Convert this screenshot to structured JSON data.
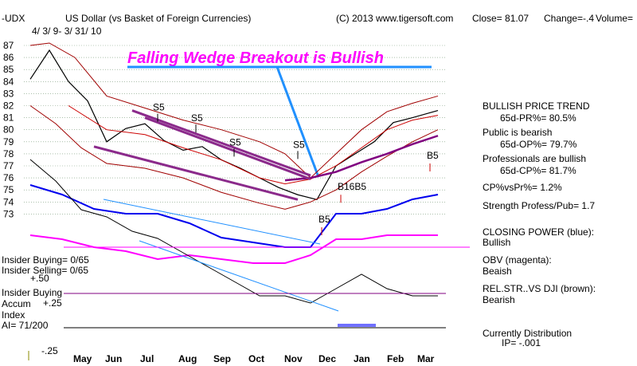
{
  "header": {
    "symbol": "-UDX",
    "title": "US Dollar (vs Basket of Foreign Currencies)",
    "dates": "4/ 3/ 9- 3/ 31/ 10",
    "copyright": "(C) 2013 www.tigersoft.com",
    "close": "Close=  81.07",
    "change": "Change=-.4",
    "volume": "Volume="
  },
  "headline": "Falling Wedge Breakout is Bullish",
  "chart_data": {
    "type": "line",
    "title": "US Dollar (vs Basket of Foreign Currencies)",
    "x_labels": [
      "May",
      "Jun",
      "Jul",
      "Aug",
      "Sep",
      "Oct",
      "Nov",
      "Dec",
      "Jan",
      "Feb",
      "Mar"
    ],
    "price_ticks": [
      87,
      86,
      85,
      84,
      83,
      82,
      81,
      80,
      79,
      78,
      77,
      76,
      75,
      74,
      73
    ],
    "ylim": [
      72.5,
      87.5
    ],
    "price_series": [
      {
        "name": "UDX",
        "x": [
          0,
          3,
          6,
          9,
          12,
          15,
          18,
          21,
          24,
          27,
          30,
          33,
          36,
          39,
          42,
          45,
          48,
          51,
          54,
          57,
          60,
          64
        ],
        "values": [
          84.2,
          86.6,
          84.0,
          82.4,
          79.0,
          80.1,
          80.5,
          79.1,
          78.3,
          78.6,
          77.5,
          76.8,
          76.0,
          75.2,
          74.6,
          74.2,
          77.0,
          78.0,
          79.0,
          80.6,
          81.0,
          81.6
        ]
      },
      {
        "name": "upper band",
        "x": [
          0,
          3,
          7,
          12,
          18,
          24,
          30,
          36,
          40,
          44,
          48,
          52,
          56,
          60,
          64
        ],
        "values": [
          87.0,
          87.2,
          86.0,
          82.8,
          81.8,
          80.8,
          80.0,
          79.0,
          78.0,
          76.0,
          78.0,
          80.0,
          81.5,
          82.2,
          82.8
        ]
      },
      {
        "name": "lower band",
        "x": [
          0,
          4,
          8,
          12,
          18,
          24,
          30,
          36,
          40,
          44,
          48,
          52,
          56,
          60,
          64
        ],
        "values": [
          82.0,
          80.5,
          78.5,
          77.2,
          76.8,
          76.0,
          74.8,
          73.9,
          73.4,
          74.0,
          75.0,
          76.5,
          77.8,
          79.0,
          80.0
        ]
      },
      {
        "name": "moving average",
        "x": [
          6,
          12,
          18,
          24,
          30,
          36,
          40,
          44,
          48,
          52,
          56,
          60,
          64
        ],
        "values": [
          82.0,
          80.0,
          79.6,
          78.5,
          77.5,
          76.0,
          75.5,
          75.9,
          77.0,
          78.5,
          80.0,
          80.8,
          81.2
        ]
      },
      {
        "name": "200-day MA",
        "x": [
          40,
          44,
          48,
          52,
          56,
          60,
          64
        ],
        "values": [
          75.8,
          76.0,
          76.5,
          77.3,
          78.0,
          78.8,
          79.5
        ]
      }
    ],
    "wedge_lines": [
      {
        "name": "wedge resistance",
        "x": [
          16,
          44
        ],
        "values": [
          81.6,
          76.2
        ]
      },
      {
        "name": "wedge inner",
        "x": [
          18,
          44
        ],
        "values": [
          81.0,
          75.9
        ]
      },
      {
        "name": "wedge support",
        "x": [
          10,
          42
        ],
        "values": [
          78.6,
          74.2
        ]
      }
    ],
    "signals": [
      {
        "label": "S5",
        "x": 20,
        "value": 81.2
      },
      {
        "label": "S5",
        "x": 26,
        "value": 80.3
      },
      {
        "label": "S5",
        "x": 32,
        "value": 78.3
      },
      {
        "label": "S5",
        "x": 42,
        "value": 78.1
      },
      {
        "label": "B5",
        "x": 63,
        "value": 77.2
      },
      {
        "label": "B16B5",
        "x": 49,
        "value": 74.6
      },
      {
        "label": "B5",
        "x": 46,
        "value": 71.9
      }
    ],
    "closing_power": {
      "x": [
        0,
        5,
        10,
        15,
        20,
        25,
        30,
        35,
        40,
        44,
        48,
        52,
        56,
        60,
        64
      ],
      "values": [
        8,
        6,
        3,
        2,
        2,
        0,
        -3,
        -4,
        -5,
        -5,
        2,
        2,
        3,
        5,
        6
      ]
    },
    "obv": {
      "x": [
        0,
        5,
        10,
        15,
        20,
        25,
        30,
        35,
        40,
        44,
        48,
        52,
        56,
        60,
        64
      ],
      "values": [
        1,
        0,
        -2,
        -3,
        -5,
        -4,
        -5,
        -6,
        -6,
        -4,
        0,
        0,
        1,
        1,
        1
      ]
    },
    "rel_str": {
      "x": [
        0,
        4,
        8,
        12,
        16,
        20,
        24,
        28,
        32,
        36,
        40,
        44,
        48,
        52,
        56,
        60,
        64
      ],
      "values": [
        10,
        7,
        3,
        2,
        0,
        -1,
        -3,
        -5,
        -7,
        -9,
        -9,
        -10,
        -8,
        -6,
        -8,
        -9,
        -9
      ]
    }
  },
  "panel_labels": {
    "insider_buying_count": "Insider Buying= 0/65",
    "insider_selling_count": "Insider Selling= 0/65",
    "plus_50": "+.50",
    "insider_buying": "Insider Buying",
    "accum": "Accum",
    "plus_25": "+.25",
    "index": "Index",
    "ai": "AI= 71/200",
    "minus_25": "-.25"
  },
  "stats": {
    "trend_title": "BULLISH PRICE TREND",
    "pr": "65d-PR%=  80.5%",
    "public": "Public is bearish",
    "op": "65d-OP%=  79.7%",
    "professionals": "Professionals are bullish",
    "cp": "65d-CP%=  81.7%",
    "cpvspr": "CP%vsPr%=  1.2%",
    "strength": "Strength Profess/Pub=  1.7",
    "closing_power_label": "CLOSING POWER (blue):",
    "closing_power_value": "Bullish",
    "obv_label": "OBV (magenta):",
    "obv_value": "Beaish",
    "relstr_label": "REL.STR..VS DJI (brown):",
    "relstr_value": "Bearish",
    "distribution": "Currently Distribution",
    "ip": "IP= -.001"
  },
  "colors": {
    "price": "#000000",
    "band": "#a00000",
    "ma": "#cc0000",
    "ma200": "#800080",
    "wedge": "#8b2a8b",
    "closing_power": "#0000ee",
    "obv": "#ff00ff",
    "rel_str": "#000000",
    "trend_line": "#2090ff",
    "headline": "#ff00ff",
    "arrow": "#cc0000"
  }
}
